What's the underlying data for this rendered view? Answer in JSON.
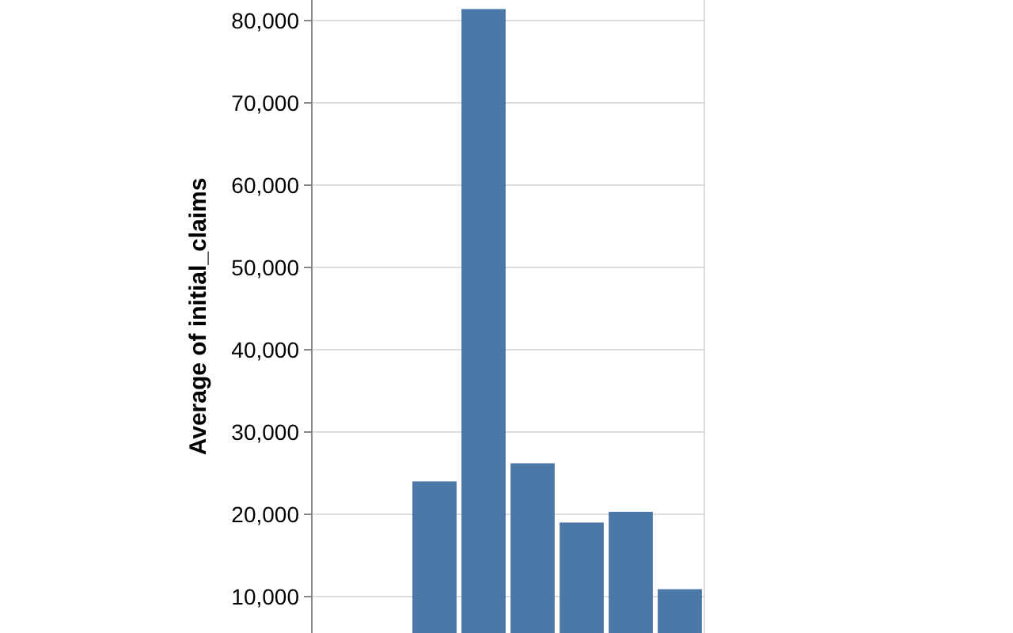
{
  "chart_data": {
    "type": "bar",
    "ylabel": "Average of initial_claims",
    "categories": [
      null,
      null,
      null,
      null,
      null,
      null,
      null,
      null
    ],
    "values": [
      null,
      null,
      24000,
      81400,
      26200,
      19000,
      20300,
      10900
    ],
    "color": "#4c78a8",
    "ylim": [
      0,
      82500
    ],
    "yticks": [
      {
        "value": 10000,
        "label": "10,000"
      },
      {
        "value": 20000,
        "label": "20,000"
      },
      {
        "value": 30000,
        "label": "30,000"
      },
      {
        "value": 40000,
        "label": "40,000"
      },
      {
        "value": 50000,
        "label": "50,000"
      },
      {
        "value": 60000,
        "label": "60,000"
      },
      {
        "value": 70000,
        "label": "70,000"
      },
      {
        "value": 80000,
        "label": "80,000"
      }
    ],
    "grid": true,
    "tick_labels": "y"
  }
}
